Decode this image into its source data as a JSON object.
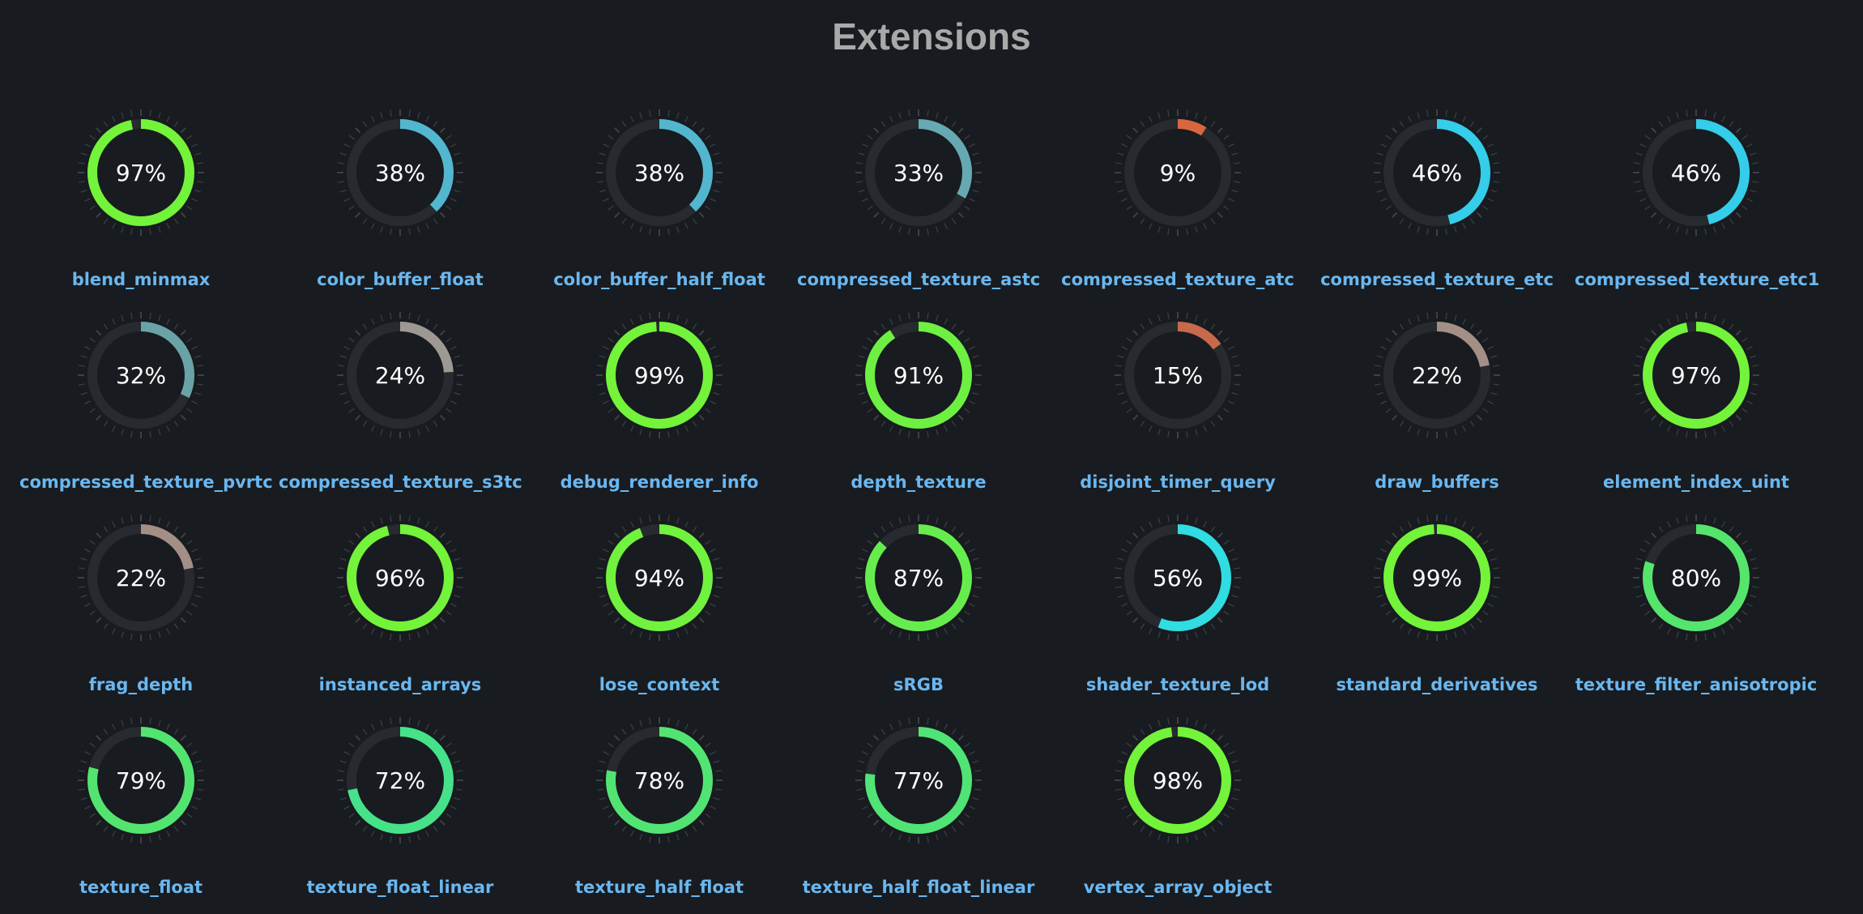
{
  "title": "Extensions",
  "colors": {
    "background": "#181b1f",
    "track": "#272a2e",
    "title": "#a9a9a9",
    "label": "#6ab7f0",
    "value_text": "#ffffff"
  },
  "chart_data": {
    "type": "gauge",
    "unit": "%",
    "min": 0,
    "max": 100,
    "items": [
      {
        "name": "blend_minmax",
        "value": 97,
        "display": "97%",
        "color": "#73f33a"
      },
      {
        "name": "color_buffer_float",
        "value": 38,
        "display": "38%",
        "color": "#52b6cf"
      },
      {
        "name": "color_buffer_half_float",
        "value": 38,
        "display": "38%",
        "color": "#52b6cf"
      },
      {
        "name": "compressed_texture_astc",
        "value": 33,
        "display": "33%",
        "color": "#66a9b2"
      },
      {
        "name": "compressed_texture_atc",
        "value": 9,
        "display": "9%",
        "color": "#d9663f"
      },
      {
        "name": "compressed_texture_etc",
        "value": 46,
        "display": "46%",
        "color": "#34cdea"
      },
      {
        "name": "compressed_texture_etc1",
        "value": 46,
        "display": "46%",
        "color": "#34cdea"
      },
      {
        "name": "compressed_texture_pvrtc",
        "value": 32,
        "display": "32%",
        "color": "#6aa3a7"
      },
      {
        "name": "compressed_texture_s3tc",
        "value": 24,
        "display": "24%",
        "color": "#9e9892"
      },
      {
        "name": "debug_renderer_info",
        "value": 99,
        "display": "99%",
        "color": "#73f33a"
      },
      {
        "name": "depth_texture",
        "value": 91,
        "display": "91%",
        "color": "#6ef043"
      },
      {
        "name": "disjoint_timer_query",
        "value": 15,
        "display": "15%",
        "color": "#c8694d"
      },
      {
        "name": "draw_buffers",
        "value": 22,
        "display": "22%",
        "color": "#a38f86"
      },
      {
        "name": "element_index_uint",
        "value": 97,
        "display": "97%",
        "color": "#73f33a"
      },
      {
        "name": "frag_depth",
        "value": 22,
        "display": "22%",
        "color": "#a38f86"
      },
      {
        "name": "instanced_arrays",
        "value": 96,
        "display": "96%",
        "color": "#73f33a"
      },
      {
        "name": "lose_context",
        "value": 94,
        "display": "94%",
        "color": "#70f23e"
      },
      {
        "name": "sRGB",
        "value": 87,
        "display": "87%",
        "color": "#66ed4d"
      },
      {
        "name": "shader_texture_lod",
        "value": 56,
        "display": "56%",
        "color": "#2fdde2"
      },
      {
        "name": "standard_derivatives",
        "value": 99,
        "display": "99%",
        "color": "#73f33a"
      },
      {
        "name": "texture_filter_anisotropic",
        "value": 80,
        "display": "80%",
        "color": "#55e56c"
      },
      {
        "name": "texture_float",
        "value": 79,
        "display": "79%",
        "color": "#53e470"
      },
      {
        "name": "texture_float_linear",
        "value": 72,
        "display": "72%",
        "color": "#45e28a"
      },
      {
        "name": "texture_half_float",
        "value": 78,
        "display": "78%",
        "color": "#52e473"
      },
      {
        "name": "texture_half_float_linear",
        "value": 77,
        "display": "77%",
        "color": "#50e376"
      },
      {
        "name": "vertex_array_object",
        "value": 98,
        "display": "98%",
        "color": "#73f33a"
      }
    ]
  }
}
